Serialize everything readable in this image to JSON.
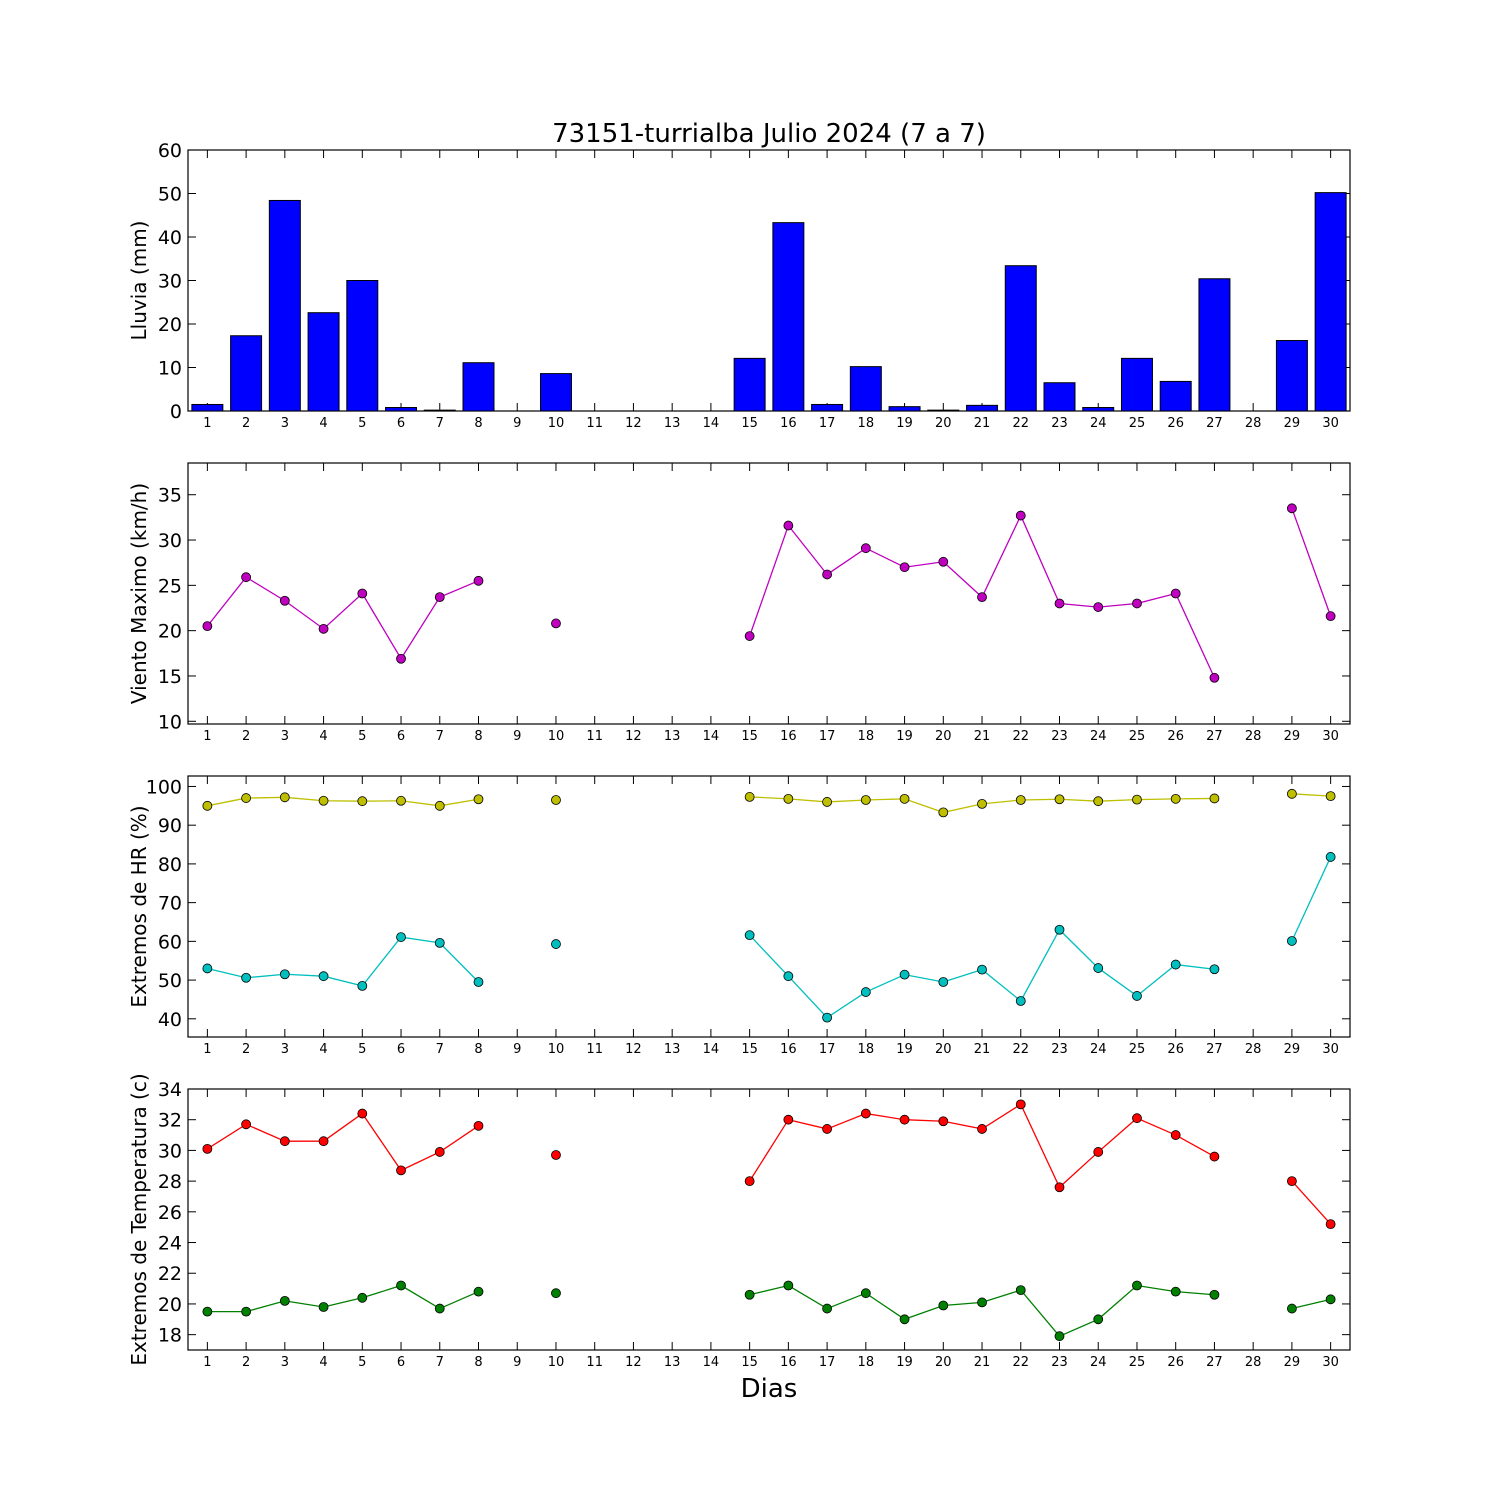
{
  "title": "73151-turrialba Julio 2024  (7 a 7)",
  "xlabel": "Dias",
  "chart_data": [
    {
      "type": "bar",
      "ylabel": "Lluvia (mm)",
      "ylim": [
        0,
        60
      ],
      "yticks": [
        0,
        10,
        20,
        30,
        40,
        50,
        60
      ],
      "x": [
        1,
        2,
        3,
        4,
        5,
        6,
        7,
        8,
        9,
        10,
        11,
        12,
        13,
        14,
        15,
        16,
        17,
        18,
        19,
        20,
        21,
        22,
        23,
        24,
        25,
        26,
        27,
        28,
        29,
        30
      ],
      "series": [
        {
          "color": "#0000ff",
          "values": [
            1.5,
            17.3,
            48.4,
            22.6,
            30.0,
            0.8,
            0.2,
            11.1,
            0,
            8.6,
            0,
            0,
            0,
            0,
            12.1,
            43.3,
            1.5,
            10.2,
            1.0,
            0.2,
            1.3,
            33.4,
            6.5,
            0.8,
            12.1,
            6.8,
            30.4,
            0,
            16.2,
            50.2
          ]
        }
      ]
    },
    {
      "type": "line",
      "ylabel": "Viento Maximo (km/h)",
      "ylim": [
        9.7,
        38.5
      ],
      "yticks": [
        10,
        15,
        20,
        25,
        30,
        35
      ],
      "x": [
        1,
        2,
        3,
        4,
        5,
        6,
        7,
        8,
        9,
        10,
        11,
        12,
        13,
        14,
        15,
        16,
        17,
        18,
        19,
        20,
        21,
        22,
        23,
        24,
        25,
        26,
        27,
        28,
        29,
        30
      ],
      "series": [
        {
          "color": "#bf00bf",
          "values": [
            20.5,
            25.9,
            23.3,
            20.2,
            24.1,
            16.9,
            23.7,
            25.5,
            null,
            20.8,
            null,
            null,
            null,
            null,
            19.4,
            31.6,
            26.2,
            29.1,
            27.0,
            27.6,
            23.7,
            32.7,
            23.0,
            22.6,
            23.0,
            24.1,
            14.8,
            null,
            33.5,
            21.6
          ]
        }
      ]
    },
    {
      "type": "line",
      "ylabel": "Extremos de HR (%)",
      "ylim": [
        35.3,
        102.7
      ],
      "yticks": [
        40,
        50,
        60,
        70,
        80,
        90,
        100
      ],
      "x": [
        1,
        2,
        3,
        4,
        5,
        6,
        7,
        8,
        9,
        10,
        11,
        12,
        13,
        14,
        15,
        16,
        17,
        18,
        19,
        20,
        21,
        22,
        23,
        24,
        25,
        26,
        27,
        28,
        29,
        30
      ],
      "series": [
        {
          "color": "#bfbf00",
          "values": [
            95.0,
            97.0,
            97.2,
            96.3,
            96.2,
            96.3,
            95.0,
            96.7,
            null,
            96.5,
            null,
            null,
            null,
            null,
            97.3,
            96.8,
            96.0,
            96.5,
            96.8,
            93.3,
            95.5,
            96.5,
            96.7,
            96.2,
            96.6,
            96.8,
            96.9,
            null,
            98.1,
            97.5
          ]
        },
        {
          "color": "#00bfbf",
          "values": [
            53.0,
            50.6,
            51.5,
            51.0,
            48.5,
            61.1,
            59.6,
            49.5,
            null,
            59.3,
            null,
            null,
            null,
            null,
            61.6,
            51.0,
            40.3,
            46.9,
            51.4,
            49.5,
            52.7,
            44.6,
            63.0,
            53.1,
            45.9,
            54.0,
            52.8,
            null,
            60.1,
            81.8
          ]
        }
      ]
    },
    {
      "type": "line",
      "ylabel": "Extremos de Temperatura (c)",
      "ylim": [
        17.0,
        34.0
      ],
      "yticks": [
        18,
        20,
        22,
        24,
        26,
        28,
        30,
        32,
        34
      ],
      "x": [
        1,
        2,
        3,
        4,
        5,
        6,
        7,
        8,
        9,
        10,
        11,
        12,
        13,
        14,
        15,
        16,
        17,
        18,
        19,
        20,
        21,
        22,
        23,
        24,
        25,
        26,
        27,
        28,
        29,
        30
      ],
      "series": [
        {
          "color": "#ff0000",
          "values": [
            30.1,
            31.7,
            30.6,
            30.6,
            32.4,
            28.7,
            29.9,
            31.6,
            null,
            29.7,
            null,
            null,
            null,
            null,
            28.0,
            32.0,
            31.4,
            32.4,
            32.0,
            31.9,
            31.4,
            33.0,
            27.6,
            29.9,
            32.1,
            31.0,
            29.6,
            null,
            28.0,
            25.2
          ]
        },
        {
          "color": "#008000",
          "values": [
            19.5,
            19.5,
            20.2,
            19.8,
            20.4,
            21.2,
            19.7,
            20.8,
            null,
            20.7,
            null,
            null,
            null,
            null,
            20.6,
            21.2,
            19.7,
            20.7,
            19.0,
            19.9,
            20.1,
            20.9,
            17.9,
            19.0,
            21.2,
            20.8,
            20.6,
            null,
            19.7,
            20.3
          ]
        }
      ]
    }
  ]
}
